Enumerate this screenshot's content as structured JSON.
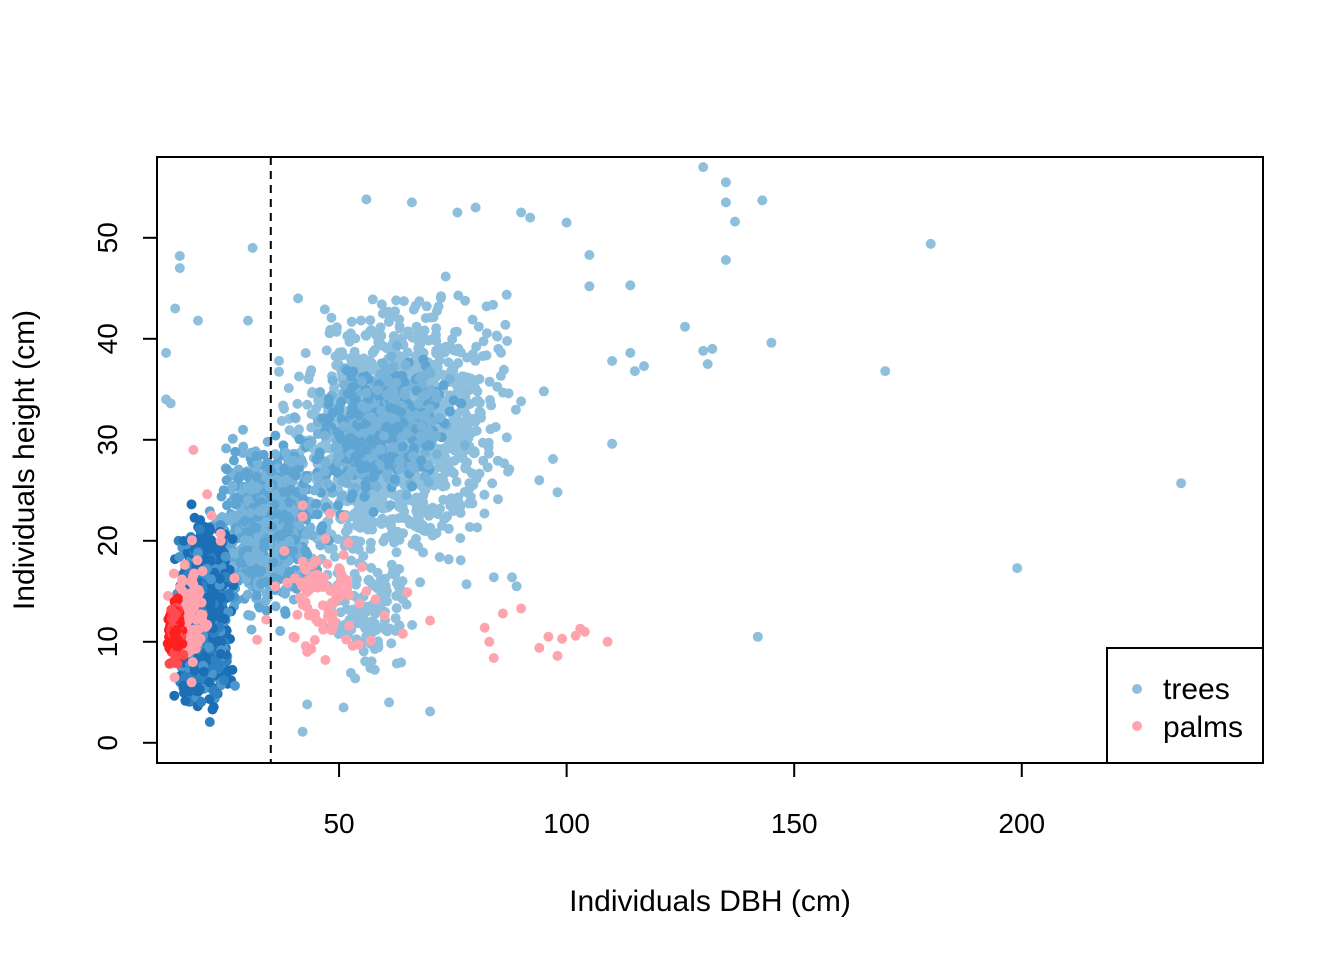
{
  "chart_data": {
    "type": "scatter",
    "title": "",
    "xlabel": "Individuals DBH (cm)",
    "ylabel": "Individuals height (cm)",
    "xlim": [
      10,
      253
    ],
    "ylim": [
      -2,
      58
    ],
    "x_ticks": [
      50,
      100,
      150,
      200
    ],
    "y_ticks": [
      0,
      10,
      20,
      30,
      40,
      50
    ],
    "x_tick_labels": [
      "50",
      "100",
      "150",
      "200"
    ],
    "y_tick_labels": [
      "0",
      "10",
      "20",
      "30",
      "40",
      "50"
    ],
    "grid": false,
    "vline": {
      "x": 35,
      "style": "dashed"
    },
    "legend": {
      "position": "bottom-right",
      "entries": [
        {
          "label": "trees",
          "color": "#8EC0DD"
        },
        {
          "label": "palms",
          "color": "#FFA3AE"
        }
      ]
    },
    "colors": {
      "trees_light": "#8EC0DD",
      "trees_dense": "#0F5BA6",
      "palms_light": "#FFA3AE",
      "palms_dense": "#FF1F1F"
    },
    "series": [
      {
        "name": "trees",
        "points": [
          [
            130,
            57
          ],
          [
            135,
            55.5
          ],
          [
            135,
            53.5
          ],
          [
            143,
            53.7
          ],
          [
            137,
            51.6
          ],
          [
            135,
            47.8
          ],
          [
            180,
            49.4
          ],
          [
            126,
            41.2
          ],
          [
            130,
            38.8
          ],
          [
            131,
            37.5
          ],
          [
            132,
            39
          ],
          [
            145,
            39.6
          ],
          [
            170,
            36.8
          ],
          [
            235,
            25.7
          ],
          [
            199,
            17.3
          ],
          [
            142,
            10.5
          ],
          [
            110,
            29.6
          ],
          [
            110,
            37.8
          ],
          [
            114,
            38.6
          ],
          [
            115,
            36.8
          ],
          [
            117,
            37.3
          ],
          [
            114,
            45.3
          ],
          [
            105,
            48.3
          ],
          [
            105,
            45.2
          ],
          [
            100,
            51.5
          ],
          [
            97,
            28.1
          ],
          [
            98,
            24.8
          ],
          [
            94,
            26
          ],
          [
            95,
            34.8
          ],
          [
            85,
            39
          ],
          [
            90,
            33.8
          ],
          [
            88,
            16.4
          ],
          [
            84,
            16.4
          ],
          [
            78,
            15.7
          ],
          [
            89,
            15.5
          ],
          [
            70,
            3.1
          ],
          [
            61,
            4
          ],
          [
            51,
            3.5
          ],
          [
            42,
            1.1
          ],
          [
            43,
            3.8
          ],
          [
            15,
            48.2
          ],
          [
            15,
            47
          ],
          [
            14,
            43
          ],
          [
            12,
            38.6
          ],
          [
            12,
            34
          ],
          [
            13,
            33.6
          ],
          [
            31,
            49
          ],
          [
            30,
            41.8
          ],
          [
            19,
            41.8
          ],
          [
            41,
            44
          ],
          [
            56,
            53.8
          ],
          [
            66,
            53.5
          ],
          [
            76,
            52.5
          ],
          [
            80,
            53
          ],
          [
            90,
            52.5
          ],
          [
            92,
            52
          ]
        ],
        "dense_regions": [
          {
            "x": [
              12,
              28
            ],
            "y": [
              1.5,
              24
            ],
            "n": 1300,
            "color": "dense"
          },
          {
            "x": [
              18,
              50
            ],
            "y": [
              10,
              33
            ],
            "n": 700,
            "color": "mid"
          },
          {
            "x": [
              32,
              92
            ],
            "y": [
              14,
              47
            ],
            "n": 1400,
            "color": "light"
          },
          {
            "x": [
              40,
              80
            ],
            "y": [
              22,
              40
            ],
            "n": 600,
            "color": "mid"
          },
          {
            "x": [
              45,
              70
            ],
            "y": [
              5,
              20
            ],
            "n": 120,
            "color": "light"
          }
        ]
      },
      {
        "name": "palms",
        "points": [
          [
            18,
            29
          ],
          [
            21,
            24.6
          ],
          [
            22,
            22.5
          ],
          [
            24,
            20.7
          ],
          [
            24,
            20
          ],
          [
            20,
            17
          ],
          [
            27,
            16.3
          ],
          [
            32,
            10.2
          ],
          [
            34,
            12.2
          ],
          [
            36,
            15.5
          ],
          [
            38,
            19
          ],
          [
            42,
            23.5
          ],
          [
            42,
            22.4
          ],
          [
            45,
            18
          ],
          [
            47,
            20.2
          ],
          [
            48,
            22.7
          ],
          [
            51,
            22.4
          ],
          [
            52,
            19.8
          ],
          [
            50,
            17.3
          ],
          [
            55,
            17.4
          ],
          [
            51,
            18.6
          ],
          [
            56,
            15
          ],
          [
            58,
            14.2
          ],
          [
            60,
            12.6
          ],
          [
            65,
            14.9
          ],
          [
            64,
            10.8
          ],
          [
            70,
            12.1
          ],
          [
            82,
            11.4
          ],
          [
            83,
            10
          ],
          [
            84,
            8.4
          ],
          [
            86,
            12.8
          ],
          [
            90,
            13.3
          ],
          [
            94,
            9.4
          ],
          [
            96,
            10.5
          ],
          [
            99,
            10.3
          ],
          [
            98,
            8.6
          ],
          [
            102,
            10.6
          ],
          [
            103,
            11.3
          ],
          [
            104,
            11
          ],
          [
            109,
            10
          ],
          [
            40,
            10.5
          ],
          [
            43,
            9
          ],
          [
            47,
            8.2
          ],
          [
            49,
            12
          ],
          [
            53,
            9.6
          ],
          [
            57,
            10.1
          ]
        ],
        "dense_regions": [
          {
            "x": [
              12,
              16
            ],
            "y": [
              7,
              15
            ],
            "n": 180,
            "color": "dense"
          },
          {
            "x": [
              12,
              22
            ],
            "y": [
              4,
              21
            ],
            "n": 90,
            "color": "light"
          },
          {
            "x": [
              35,
              58
            ],
            "y": [
              8,
              20
            ],
            "n": 70,
            "color": "light"
          }
        ]
      }
    ]
  }
}
